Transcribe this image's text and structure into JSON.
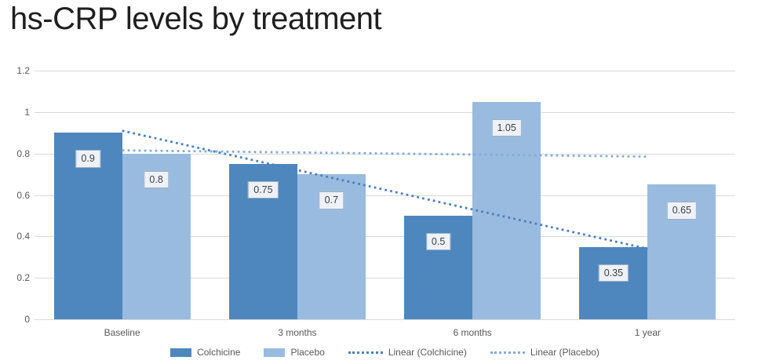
{
  "title": "hs-CRP levels by treatment",
  "chart_data": {
    "type": "bar",
    "title": "hs-CRP levels by treatment",
    "categories": [
      "Baseline",
      "3 months",
      "6 months",
      "1 year"
    ],
    "series": [
      {
        "name": "Colchicine",
        "values": [
          0.9,
          0.75,
          0.5,
          0.35
        ],
        "color": "#4e87be"
      },
      {
        "name": "Placebo",
        "values": [
          0.8,
          0.7,
          1.05,
          0.65
        ],
        "color": "#99bbdf"
      }
    ],
    "trendlines": [
      {
        "name": "Linear (Colchicine)",
        "start": 0.91,
        "end": 0.34,
        "color": "#4a80c2"
      },
      {
        "name": "Linear (Placebo)",
        "start": 0.815,
        "end": 0.785,
        "color": "#85abda"
      }
    ],
    "ylim": [
      0,
      1.2
    ],
    "yticks": [
      "0",
      "0.2",
      "0.4",
      "0.6",
      "0.8",
      "1",
      "1.2"
    ],
    "grid": true,
    "data_labels": true,
    "legend_position": "bottom",
    "xlabel": "",
    "ylabel": ""
  },
  "legend": {
    "items": [
      {
        "label": "Colchicine",
        "type": "swatch",
        "color": "#4e87be"
      },
      {
        "label": "Placebo",
        "type": "swatch",
        "color": "#99bbdf"
      },
      {
        "label": "Linear (Colchicine)",
        "type": "dotted",
        "color": "#4a80c2"
      },
      {
        "label": "Linear (Placebo)",
        "type": "dotted",
        "color": "#85abda"
      }
    ]
  },
  "colors": {
    "background": "#ffffff",
    "gridline": "#d9d9d9",
    "axis_text": "#595959",
    "title_text": "#1f1f1f",
    "datalabel_bg": "#eef2f8",
    "datalabel_border": "#9db0c4",
    "datalabel_text": "#3f3f3f"
  }
}
